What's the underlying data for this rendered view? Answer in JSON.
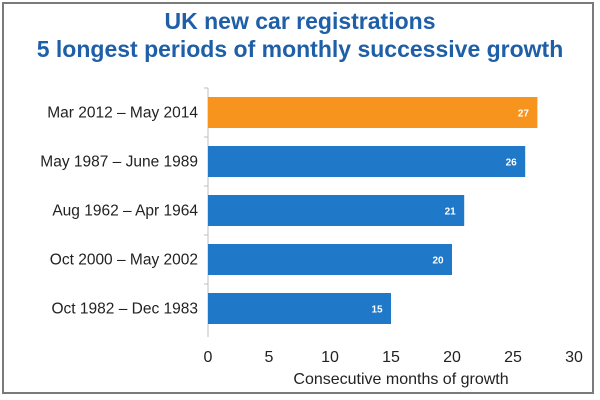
{
  "chart_data": {
    "type": "bar",
    "orientation": "horizontal",
    "title": "UK new car registrations",
    "subtitle": "5 longest periods of monthly successive growth",
    "categories": [
      "Mar 2012 – May 2014",
      "May 1987 – June 1989",
      "Aug 1962 – Apr 1964",
      "Oct 2000 – May 2002",
      "Oct 1982 – Dec 1983"
    ],
    "values": [
      27,
      26,
      21,
      20,
      15
    ],
    "bar_colors": [
      "#f7941d",
      "#1f78c8",
      "#1f78c8",
      "#1f78c8",
      "#1f78c8"
    ],
    "xlabel": "Consecutive months of growth",
    "ylabel": "",
    "xlim": [
      0,
      30
    ],
    "xticks": [
      0,
      5,
      10,
      15,
      20,
      25,
      30
    ],
    "grid": false,
    "legend": "none"
  }
}
